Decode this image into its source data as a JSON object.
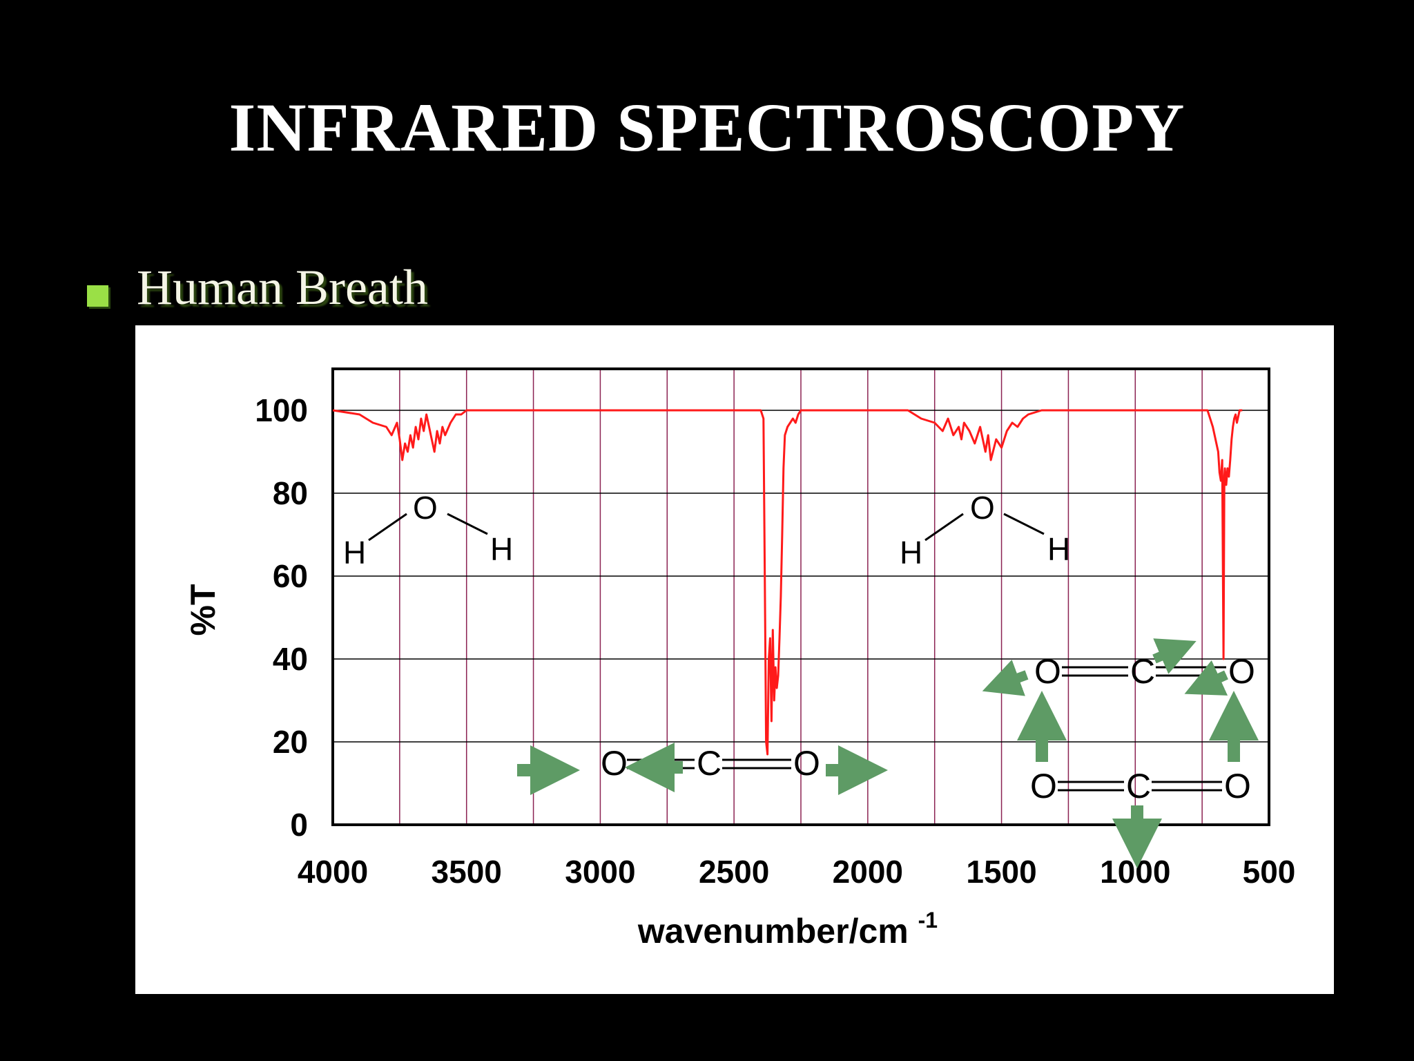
{
  "slide": {
    "title": "INFRARED SPECTROSCOPY",
    "bullet_text": "Human Breath",
    "bullet_color": "#9ae046"
  },
  "chart_data": {
    "type": "line",
    "title": "",
    "xlabel": "wavenumber/cm",
    "xlabel_superscript": "-1",
    "ylabel": "%T",
    "xlim": [
      4000,
      500
    ],
    "ylim": [
      0,
      110
    ],
    "x_reversed": true,
    "x_ticks": [
      "4000",
      "3500",
      "3000",
      "2500",
      "2000",
      "1500",
      "1000",
      "500"
    ],
    "y_ticks": [
      "0",
      "20",
      "40",
      "60",
      "80",
      "100"
    ],
    "grid": {
      "vertical": "every 250",
      "horizontal": "every 20",
      "vertical_color": "#8b2252",
      "horizontal_color": "#000000"
    },
    "series_color": "#ff1a1a",
    "series": [
      {
        "x": [
          4000,
          3900,
          3850,
          3800,
          3780,
          3760,
          3750,
          3740,
          3730,
          3720,
          3710,
          3700,
          3690,
          3680,
          3670,
          3660,
          3650,
          3640,
          3630,
          3620,
          3610,
          3600,
          3590,
          3580,
          3560,
          3540,
          3520,
          3500,
          3000,
          2400,
          2390,
          2385,
          2380,
          2375,
          2370,
          2365,
          2360,
          2355,
          2350,
          2345,
          2340,
          2335,
          2330,
          2325,
          2320,
          2315,
          2310,
          2300,
          2290,
          2280,
          2270,
          2260,
          2250,
          2240,
          1850,
          1800,
          1750,
          1720,
          1700,
          1680,
          1660,
          1650,
          1640,
          1620,
          1600,
          1580,
          1560,
          1550,
          1540,
          1520,
          1500,
          1480,
          1460,
          1440,
          1420,
          1400,
          1350,
          1300,
          730,
          720,
          710,
          700,
          690,
          685,
          680,
          675,
          670,
          667,
          665,
          660,
          655,
          650,
          645,
          640,
          635,
          630,
          625,
          620,
          610,
          600
        ],
        "y": [
          100,
          99,
          97,
          96,
          94,
          97,
          93,
          88,
          92,
          90,
          94,
          91,
          96,
          93,
          98,
          95,
          99,
          96,
          93,
          90,
          95,
          92,
          96,
          94,
          97,
          99,
          99,
          100,
          100,
          100,
          98,
          60,
          20,
          17,
          40,
          45,
          25,
          47,
          30,
          38,
          33,
          36,
          45,
          55,
          70,
          86,
          94,
          96,
          97,
          98,
          97,
          99,
          100,
          100,
          100,
          98,
          97,
          95,
          98,
          94,
          96,
          93,
          97,
          95,
          92,
          96,
          90,
          94,
          88,
          93,
          91,
          95,
          97,
          96,
          98,
          99,
          100,
          100,
          100,
          98,
          96,
          93,
          90,
          85,
          83,
          88,
          40,
          84,
          86,
          82,
          86,
          84,
          88,
          93,
          96,
          98,
          99,
          97,
          100,
          100
        ]
      }
    ],
    "annotations": [
      {
        "type": "molecule",
        "name": "H2O",
        "atoms": [
          "H",
          "O",
          "H"
        ],
        "near_x": 3680
      },
      {
        "type": "molecule",
        "name": "H2O",
        "atoms": [
          "H",
          "O",
          "H"
        ],
        "near_x": 1590
      },
      {
        "type": "molecule",
        "name": "CO2 asymmetric stretch",
        "atoms": [
          "O",
          "C",
          "O"
        ],
        "near_x": 2350,
        "arrows": "green"
      },
      {
        "type": "molecule",
        "name": "CO2 bending (in-plane)",
        "atoms": [
          "O",
          "C",
          "O"
        ],
        "near_x": 1000,
        "arrows": "green"
      },
      {
        "type": "molecule",
        "name": "CO2 bending (rotational)",
        "atoms": [
          "O",
          "C",
          "O"
        ],
        "near_x": 1000,
        "arrows": "green"
      }
    ],
    "arrow_color": "#5e9b65"
  }
}
